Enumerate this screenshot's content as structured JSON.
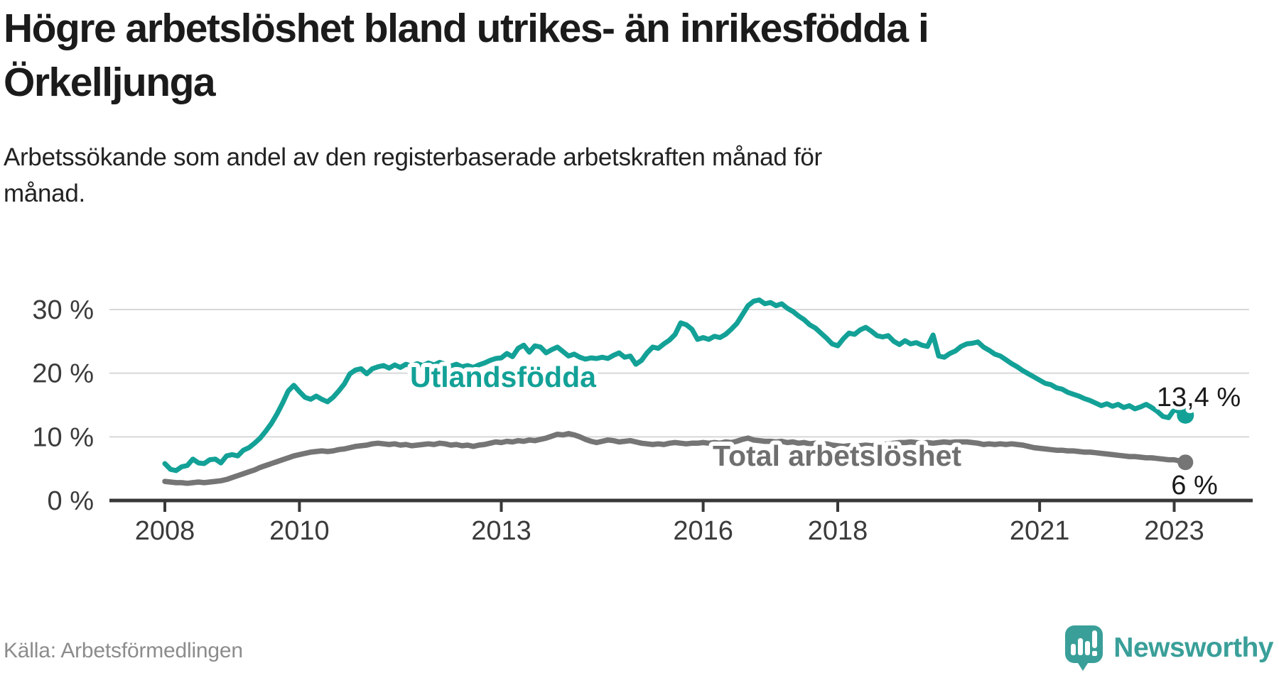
{
  "header": {
    "title_line1": "Högre arbetslöshet bland utrikes- än inrikesfödda i",
    "title_line2": "Örkelljunga",
    "subtitle_line1": "Arbetssökande som andel av den registerbaserade arbetskraften månad för",
    "subtitle_line2": "månad."
  },
  "footer": {
    "source": "Källa: Arbetsförmedlingen",
    "logo_text": "Newsworthy",
    "logo_color": "#3a9f99"
  },
  "chart_data": {
    "type": "line",
    "x_unit": "month",
    "x_start_year": 2008,
    "x_end": "2023-03",
    "grid": "horizontal",
    "ylim": [
      0,
      35
    ],
    "x_ticks": [
      2008,
      2010,
      2013,
      2016,
      2018,
      2021,
      2023
    ],
    "y_ticks": [
      {
        "value": 0,
        "label": "0 %"
      },
      {
        "value": 10,
        "label": "10 %"
      },
      {
        "value": 20,
        "label": "20 %"
      },
      {
        "value": 30,
        "label": "30 %"
      }
    ],
    "axis_color": "#383838",
    "grid_color": "#d8d8d8",
    "tick_label_color": "#3b3b3b",
    "end_label_color": "#1a1a1a",
    "series": [
      {
        "name": "Utlandsfödda",
        "color": "#13a197",
        "label_color": "#13a197",
        "end_label": "13,4 %",
        "end_value": 13.4,
        "dashed_tail_points": 3,
        "values": [
          5.8,
          4.9,
          4.7,
          5.3,
          5.5,
          6.5,
          5.9,
          5.8,
          6.4,
          6.5,
          5.9,
          7.0,
          7.2,
          7.0,
          7.9,
          8.3,
          9.0,
          9.8,
          10.9,
          12.1,
          13.6,
          15.3,
          17.2,
          18.1,
          17.1,
          16.2,
          15.9,
          16.4,
          15.9,
          15.5,
          16.2,
          17.2,
          18.3,
          19.9,
          20.5,
          20.7,
          19.9,
          20.7,
          21.0,
          21.2,
          20.8,
          21.3,
          20.9,
          21.4,
          21.1,
          21.5,
          21.2,
          21.6,
          21.3,
          21.7,
          21.4,
          21.1,
          21.4,
          21.0,
          21.2,
          20.9,
          21.3,
          21.6,
          22.0,
          22.3,
          22.4,
          23.1,
          22.6,
          23.9,
          24.4,
          23.3,
          24.3,
          24.1,
          23.2,
          23.7,
          24.1,
          23.4,
          22.7,
          23.0,
          22.5,
          22.2,
          22.4,
          22.3,
          22.5,
          22.3,
          22.8,
          23.2,
          22.5,
          22.7,
          21.4,
          22.0,
          23.2,
          24.1,
          23.9,
          24.6,
          25.2,
          26.1,
          27.9,
          27.6,
          26.9,
          25.3,
          25.6,
          25.3,
          25.8,
          25.6,
          26.1,
          26.9,
          27.8,
          29.2,
          30.6,
          31.3,
          31.5,
          30.9,
          31.1,
          30.6,
          30.9,
          30.2,
          29.7,
          29.0,
          28.4,
          27.6,
          27.1,
          26.3,
          25.5,
          24.6,
          24.3,
          25.4,
          26.3,
          26.1,
          26.8,
          27.2,
          26.6,
          25.9,
          25.7,
          25.9,
          25.0,
          24.5,
          25.1,
          24.6,
          24.8,
          24.4,
          24.2,
          26.0,
          22.7,
          22.5,
          23.1,
          23.5,
          24.2,
          24.6,
          24.7,
          24.9,
          24.1,
          23.6,
          23.0,
          22.7,
          22.1,
          21.5,
          21.0,
          20.4,
          19.9,
          19.4,
          18.9,
          18.4,
          18.2,
          17.7,
          17.5,
          17.0,
          16.7,
          16.4,
          16.0,
          15.7,
          15.3,
          14.9,
          15.2,
          14.8,
          15.1,
          14.6,
          14.9,
          14.4,
          14.7,
          15.1,
          14.6,
          14.0,
          13.2,
          13.0,
          14.3,
          13.9,
          13.4
        ]
      },
      {
        "name": "Total arbetslöshet",
        "color": "#757575",
        "label_color": "#6f6f6f",
        "end_label": "6 %",
        "end_value": 6.0,
        "dashed_tail_points": 0,
        "values": [
          3.0,
          2.9,
          2.8,
          2.8,
          2.7,
          2.8,
          2.9,
          2.8,
          2.9,
          3.0,
          3.1,
          3.3,
          3.6,
          3.9,
          4.2,
          4.5,
          4.8,
          5.2,
          5.5,
          5.8,
          6.1,
          6.4,
          6.7,
          7.0,
          7.2,
          7.4,
          7.6,
          7.7,
          7.8,
          7.7,
          7.8,
          8.0,
          8.1,
          8.3,
          8.5,
          8.6,
          8.7,
          8.9,
          9.0,
          8.9,
          8.8,
          8.9,
          8.7,
          8.8,
          8.6,
          8.7,
          8.8,
          8.9,
          8.8,
          9.0,
          8.9,
          8.7,
          8.8,
          8.6,
          8.7,
          8.5,
          8.7,
          8.8,
          9.0,
          9.2,
          9.1,
          9.3,
          9.2,
          9.4,
          9.3,
          9.5,
          9.4,
          9.6,
          9.8,
          10.1,
          10.4,
          10.3,
          10.5,
          10.3,
          10.0,
          9.6,
          9.3,
          9.1,
          9.3,
          9.5,
          9.4,
          9.2,
          9.3,
          9.4,
          9.2,
          9.0,
          8.9,
          8.8,
          8.9,
          8.8,
          9.0,
          9.1,
          9.0,
          8.9,
          9.0,
          9.0,
          9.1,
          9.0,
          9.1,
          9.0,
          9.2,
          9.1,
          9.3,
          9.6,
          9.8,
          9.5,
          9.4,
          9.3,
          9.3,
          9.2,
          9.3,
          9.1,
          9.2,
          9.0,
          9.1,
          8.9,
          9.0,
          8.8,
          8.9,
          8.7,
          8.6,
          8.5,
          8.6,
          8.5,
          8.6,
          8.7,
          8.6,
          8.7,
          8.8,
          8.9,
          9.0,
          9.1,
          9.1,
          9.2,
          9.1,
          9.0,
          9.1,
          9.0,
          9.1,
          9.2,
          9.1,
          9.2,
          9.2,
          9.2,
          9.1,
          9.0,
          8.8,
          8.9,
          8.8,
          8.9,
          8.8,
          8.9,
          8.8,
          8.7,
          8.5,
          8.3,
          8.2,
          8.1,
          8.0,
          7.9,
          7.9,
          7.8,
          7.8,
          7.7,
          7.6,
          7.6,
          7.5,
          7.4,
          7.3,
          7.2,
          7.1,
          7.0,
          6.9,
          6.9,
          6.8,
          6.7,
          6.7,
          6.6,
          6.5,
          6.4,
          6.4,
          6.2,
          6.0
        ]
      }
    ]
  }
}
